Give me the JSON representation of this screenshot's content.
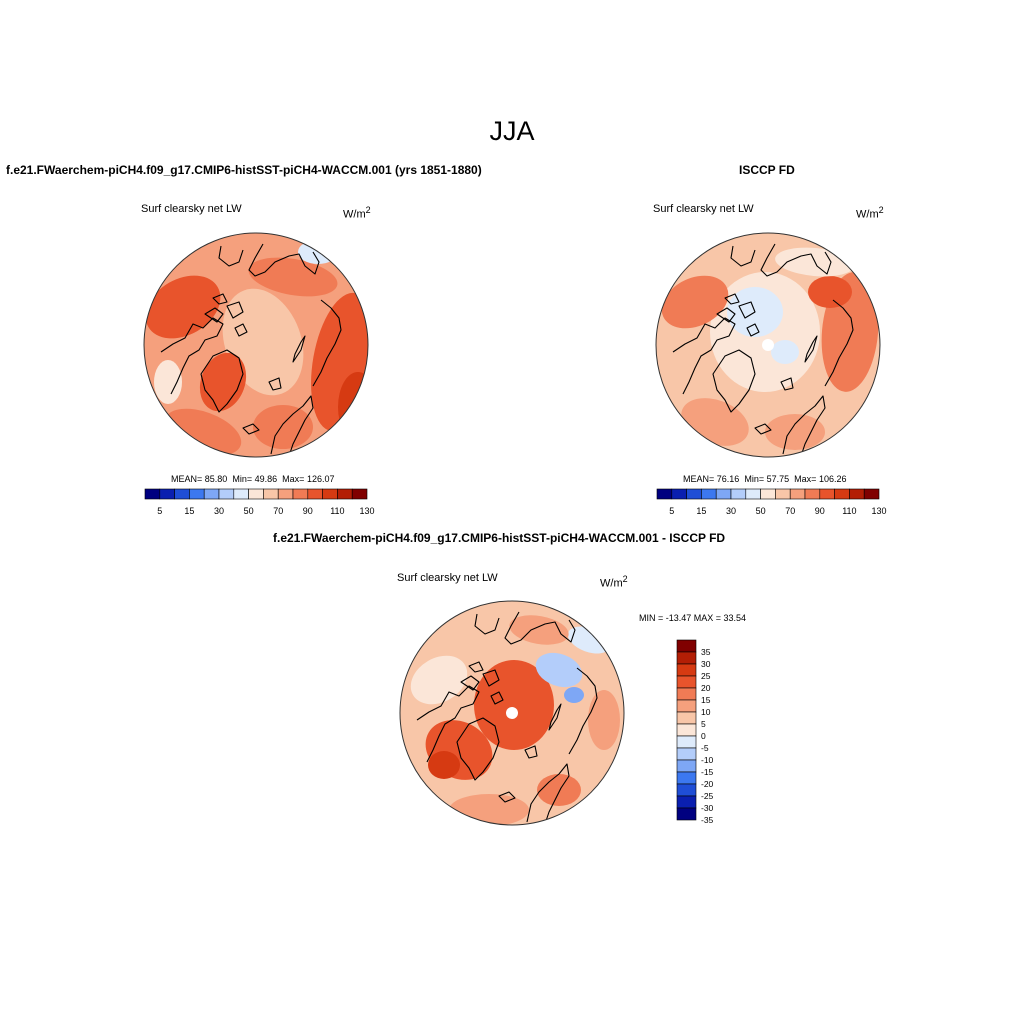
{
  "figure": {
    "title": "JJA"
  },
  "colors": {
    "coast": "#000000",
    "pole_hole": "#ffffff",
    "abs_scale": [
      "#000080",
      "#0a1fb0",
      "#1f4ed6",
      "#3c78f0",
      "#7ea7f5",
      "#b3cdfa",
      "#deebfb",
      "#fbe6d8",
      "#f8c6a8",
      "#f5a07d",
      "#f07b55",
      "#e8542c",
      "#d63a12",
      "#b31e05",
      "#800000"
    ],
    "diff_scale": [
      "#000080",
      "#0a1fb0",
      "#1f4ed6",
      "#3c78f0",
      "#7ea7f5",
      "#b3cdfa",
      "#deebfb",
      "#fbe6d8",
      "#f8c6a8",
      "#f5a07d",
      "#f07b55",
      "#e8542c",
      "#d63a12",
      "#b31e05",
      "#800000"
    ]
  },
  "chart_data": [
    {
      "type": "heatmap",
      "projection": "north-polar-stereographic",
      "title": "f.e21.FWaerchem-piCH4.f09_g17.CMIP6-histSST-piCH4-WACCM.001 (yrs 1851-1880)",
      "variable": "Surf clearsky net LW",
      "units": "W/m",
      "units_sup": "2",
      "stats": {
        "mean": 85.8,
        "min": 49.86,
        "max": 126.07
      },
      "stats_text": {
        "mean_label": "MEAN=",
        "mean": "85.80",
        "min_label": "Min=",
        "min": "49.86",
        "max_label": "Max=",
        "max": "126.07"
      },
      "colorbar": {
        "orientation": "horizontal",
        "levels": [
          5,
          10,
          15,
          20,
          30,
          40,
          50,
          60,
          70,
          80,
          90,
          100,
          110,
          120,
          130
        ],
        "tick_labels": [
          "5",
          "15",
          "30",
          "50",
          "70",
          "90",
          "110",
          "130"
        ]
      }
    },
    {
      "type": "heatmap",
      "projection": "north-polar-stereographic",
      "title": "ISCCP FD",
      "variable": "Surf clearsky net LW",
      "units": "W/m",
      "units_sup": "2",
      "stats": {
        "mean": 76.16,
        "min": 57.75,
        "max": 106.26
      },
      "stats_text": {
        "mean_label": "MEAN=",
        "mean": "76.16",
        "min_label": "Min=",
        "min": "57.75",
        "max_label": "Max=",
        "max": "106.26"
      },
      "colorbar": {
        "orientation": "horizontal",
        "levels": [
          5,
          10,
          15,
          20,
          30,
          40,
          50,
          60,
          70,
          80,
          90,
          100,
          110,
          120,
          130
        ],
        "tick_labels": [
          "5",
          "15",
          "30",
          "50",
          "70",
          "90",
          "110",
          "130"
        ]
      }
    },
    {
      "type": "heatmap",
      "projection": "north-polar-stereographic",
      "title": "f.e21.FWaerchem-piCH4.f09_g17.CMIP6-histSST-piCH4-WACCM.001 - ISCCP FD",
      "variable": "Surf clearsky net LW",
      "units": "W/m",
      "units_sup": "2",
      "stats": {
        "min": -13.47,
        "max": 33.54
      },
      "stats_text": "MIN = -13.47 MAX =  33.54",
      "colorbar": {
        "orientation": "vertical",
        "levels": [
          -35,
          -30,
          -25,
          -20,
          -15,
          -10,
          -5,
          0,
          5,
          10,
          15,
          20,
          25,
          30,
          35
        ],
        "tick_labels": [
          "35",
          "30",
          "25",
          "20",
          "15",
          "10",
          "5",
          "0",
          "-5",
          "-10",
          "-15",
          "-20",
          "-25",
          "-30",
          "-35"
        ]
      }
    }
  ]
}
